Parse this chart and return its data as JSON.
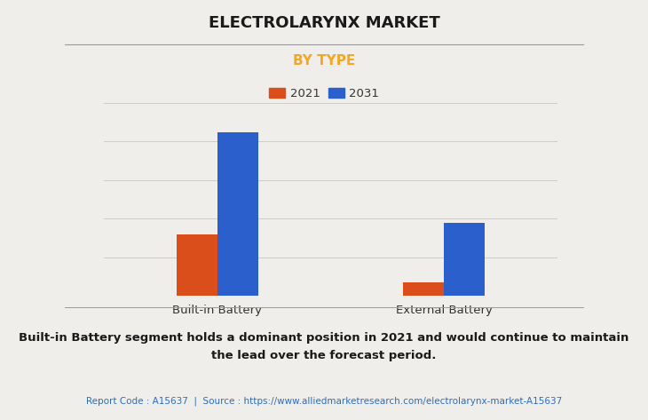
{
  "title": "ELECTROLARYNX MARKET",
  "subtitle": "BY TYPE",
  "categories": [
    "Built-in Battery",
    "External Battery"
  ],
  "series": [
    {
      "label": "2021",
      "values": [
        32,
        7
      ],
      "color": "#d94e1a"
    },
    {
      "label": "2031",
      "values": [
        85,
        38
      ],
      "color": "#2b5fcc"
    }
  ],
  "ylim": [
    0,
    100
  ],
  "bar_width": 0.18,
  "background_color": "#f0eeea",
  "plot_bg_color": "#f0eeea",
  "title_fontsize": 13,
  "subtitle_fontsize": 11,
  "subtitle_color": "#f5a623",
  "title_color": "#1a1a1a",
  "tick_label_fontsize": 9.5,
  "legend_fontsize": 9.5,
  "footer_text": "Built-in Battery segment holds a dominant position in 2021 and would continue to maintain\nthe lead over the forecast period.",
  "report_text": "Report Code : A15637  |  Source : https://www.alliedmarketresearch.com/electrolarynx-market-A15637",
  "report_color": "#2a6ebb",
  "grid_color": "#cccccc",
  "separator_color": "#999999"
}
